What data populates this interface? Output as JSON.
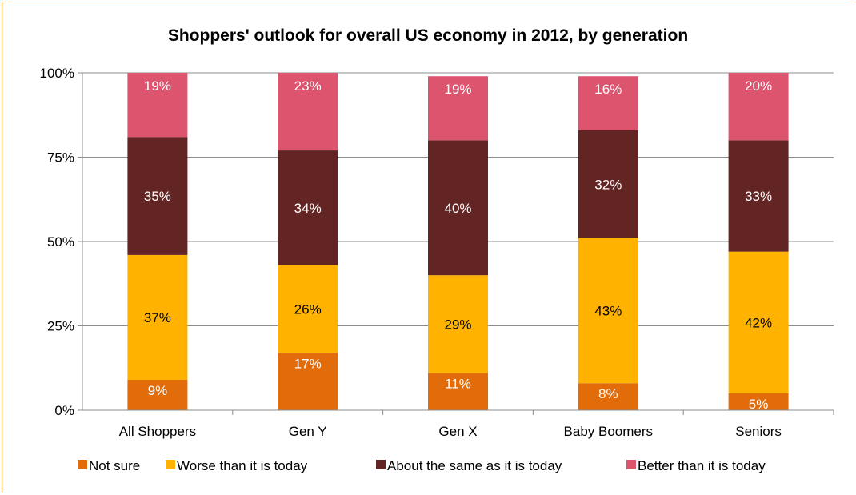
{
  "chart_data": {
    "type": "bar",
    "stacked": true,
    "title": "Shoppers' outlook for overall US economy in 2012, by generation",
    "categories": [
      "All Shoppers",
      "Gen Y",
      "Gen X",
      "Baby Boomers",
      "Seniors"
    ],
    "series": [
      {
        "name": "Not sure",
        "values": [
          9,
          17,
          11,
          8,
          5
        ],
        "labels": [
          "9%",
          "17%",
          "11%",
          "8%",
          "5%"
        ],
        "color": "#e26b0a"
      },
      {
        "name": "Worse than it is today",
        "values": [
          37,
          26,
          29,
          43,
          42
        ],
        "labels": [
          "37%",
          "26%",
          "29%",
          "43%",
          "42%"
        ],
        "color": "#ffb300"
      },
      {
        "name": "About the same as it is today",
        "values": [
          35,
          34,
          40,
          32,
          33
        ],
        "labels": [
          "35%",
          "34%",
          "40%",
          "32%",
          "33%"
        ],
        "color": "#632523"
      },
      {
        "name": "Better than it is today",
        "values": [
          19,
          23,
          19,
          16,
          20
        ],
        "labels": [
          "19%",
          "23%",
          "19%",
          "16%",
          "20%"
        ],
        "color": "#dc546e"
      }
    ],
    "yticks": [
      "0%",
      "25%",
      "50%",
      "75%",
      "100%"
    ],
    "ylim": [
      0,
      100
    ],
    "grid": true,
    "legend": "bottom"
  }
}
